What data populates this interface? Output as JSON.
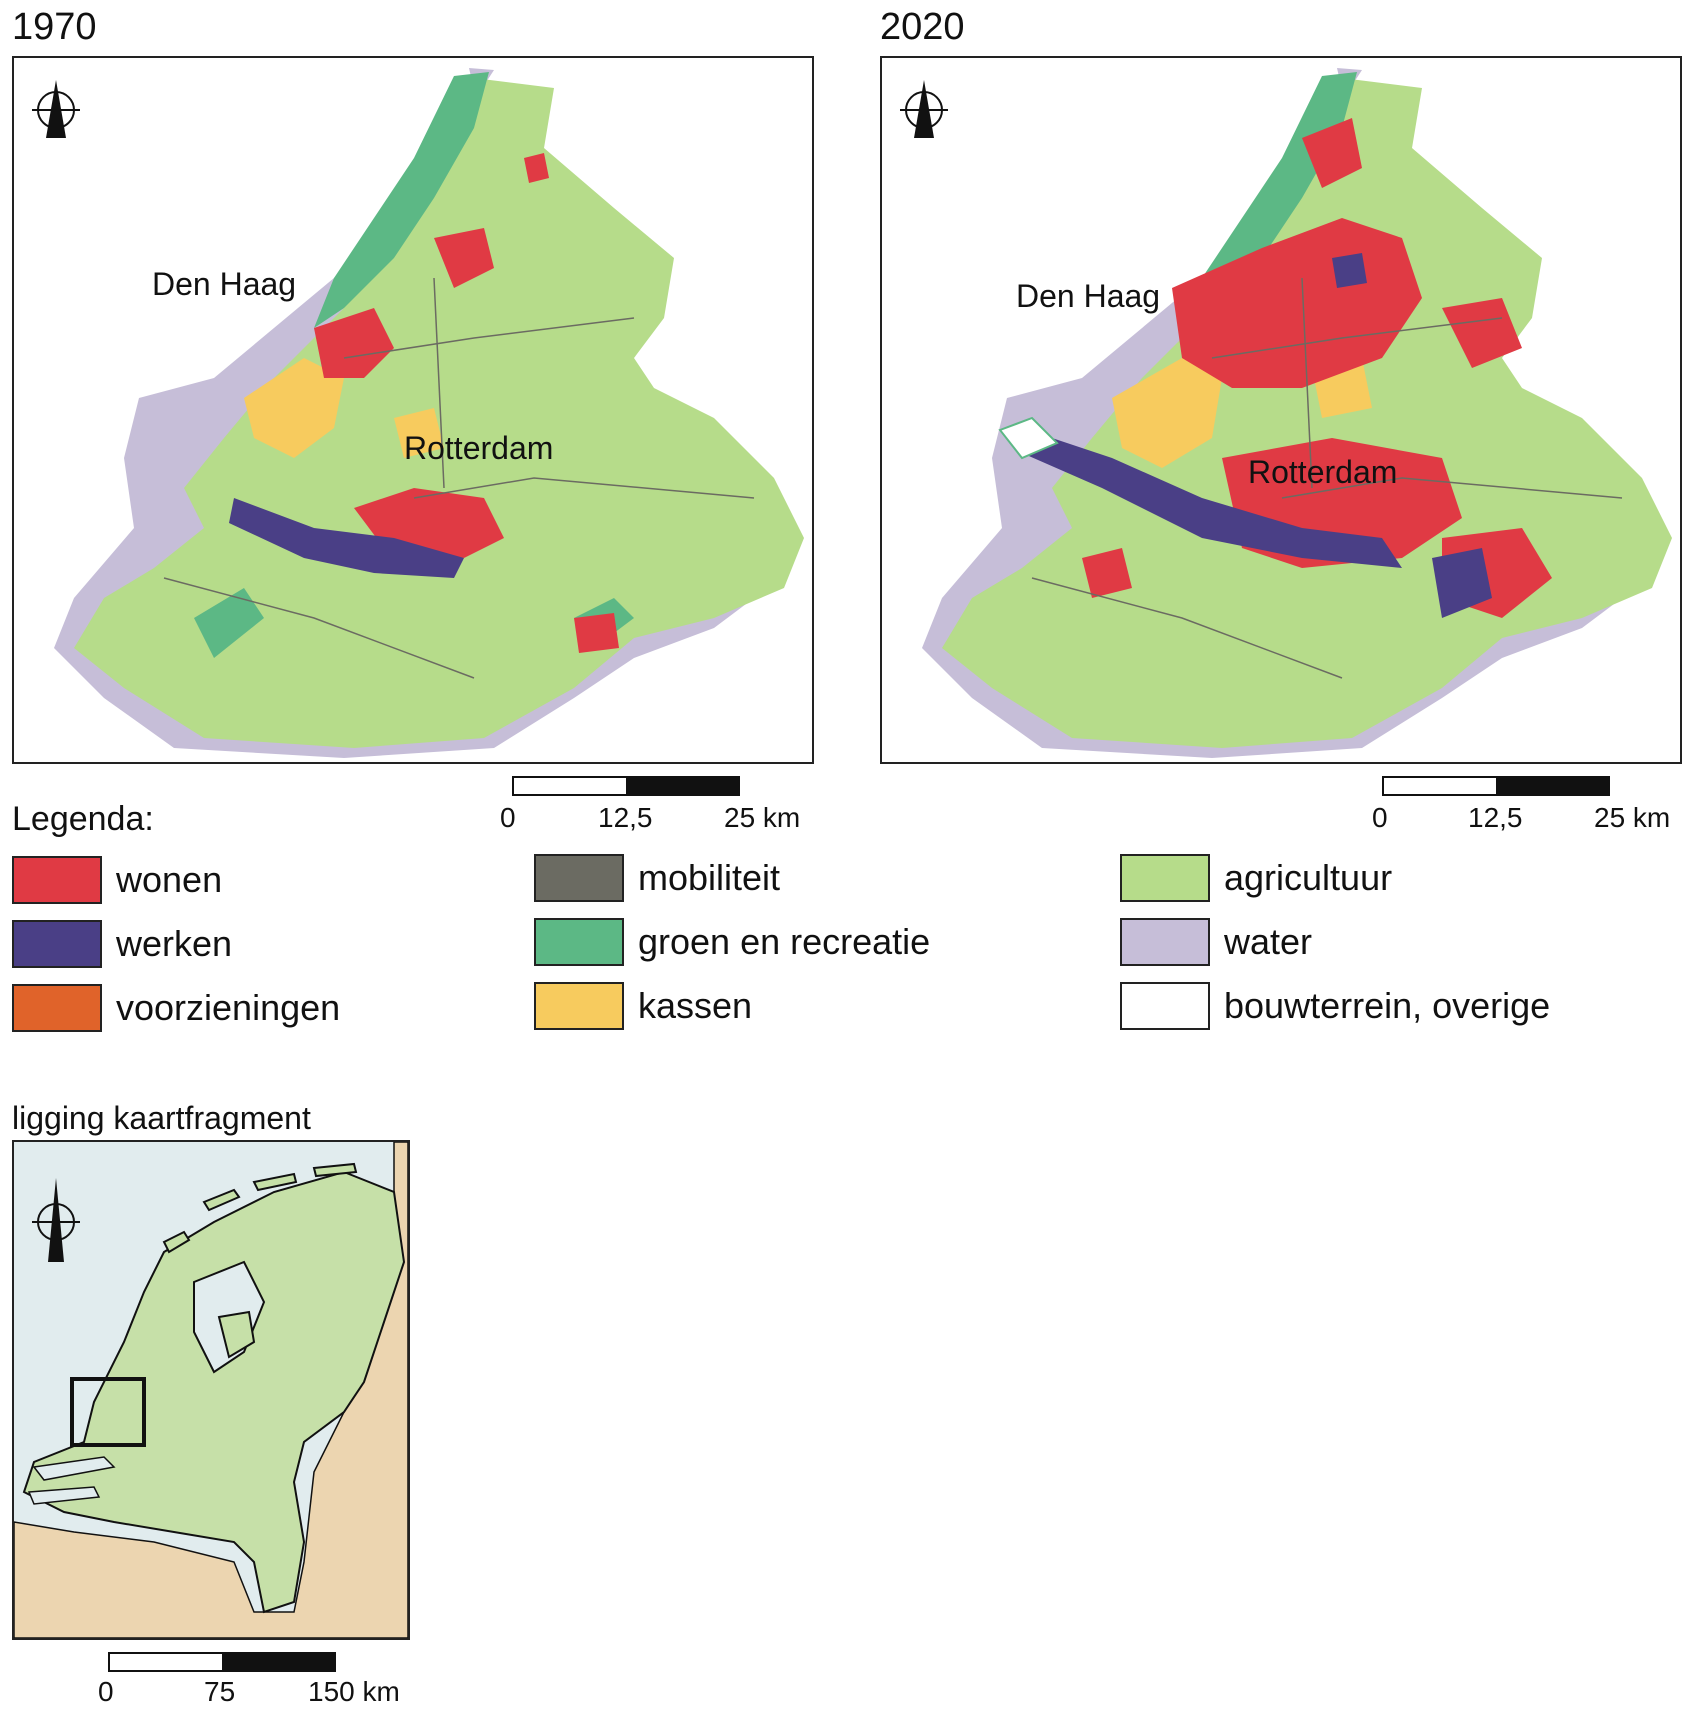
{
  "map_1970": {
    "year": "1970",
    "label_den_haag": "Den Haag",
    "label_rotterdam": "Rotterdam"
  },
  "map_2020": {
    "year": "2020",
    "label_den_haag": "Den Haag",
    "label_rotterdam": "Rotterdam"
  },
  "scalebar_main": {
    "tick_0": "0",
    "tick_mid": "12,5",
    "tick_end": "25 km"
  },
  "legend": {
    "title": "Legenda:",
    "items": [
      {
        "label": "wonen",
        "color": "#e03a44"
      },
      {
        "label": "werken",
        "color": "#4a3f86"
      },
      {
        "label": "voorzieningen",
        "color": "#e0632a"
      },
      {
        "label": "mobiliteit",
        "color": "#6b6b62"
      },
      {
        "label": "groen en recreatie",
        "color": "#5cb885"
      },
      {
        "label": "kassen",
        "color": "#f7cb5e"
      },
      {
        "label": "agricultuur",
        "color": "#b6dc8a"
      },
      {
        "label": "water",
        "color": "#c6bed8"
      },
      {
        "label": "bouwterrein, overige",
        "color": "#ffffff"
      }
    ]
  },
  "inset": {
    "title": "ligging kaartfragment",
    "scale_0": "0",
    "scale_mid": "75",
    "scale_end": "150 km",
    "sea_color": "#e1ecee",
    "land_color": "#c6e0a8",
    "neighbour_color": "#ecd5b0"
  },
  "icons": {
    "north_arrow": "north-arrow-icon"
  }
}
